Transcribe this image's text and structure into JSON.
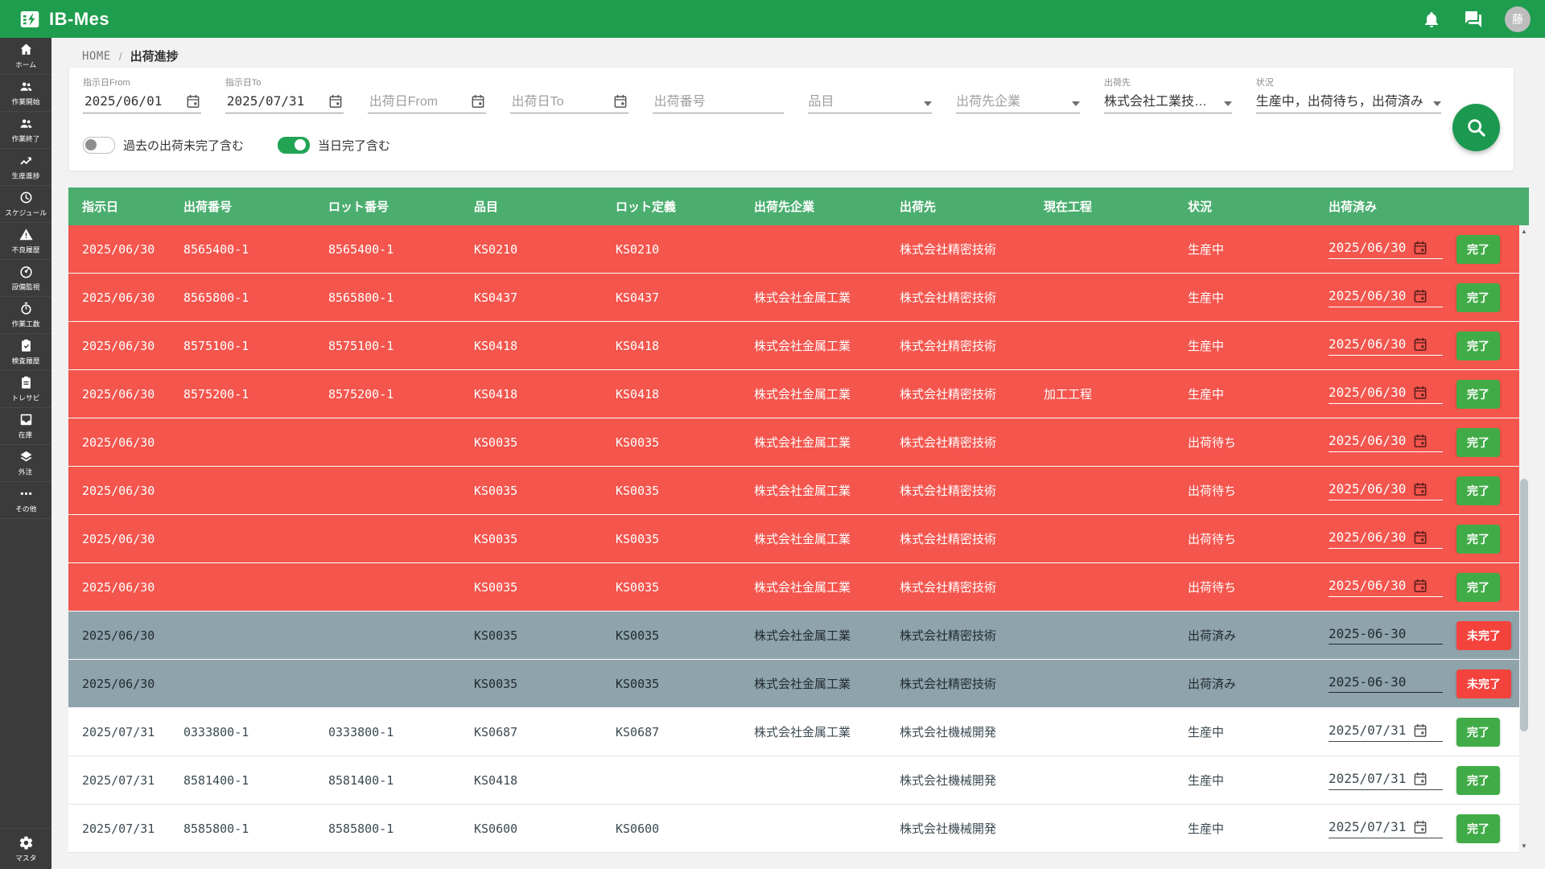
{
  "app": {
    "title": "IB-Mes",
    "avatar_text": "藤"
  },
  "breadcrumb": {
    "home": "HOME",
    "separator": "/",
    "current": "出荷進捗"
  },
  "filters": [
    {
      "type": "date",
      "label": "指示日From",
      "value": "2025/06/01",
      "placeholder": ""
    },
    {
      "type": "date",
      "label": "指示日To",
      "value": "2025/07/31",
      "placeholder": ""
    },
    {
      "type": "date",
      "label": "",
      "value": "",
      "placeholder": "出荷日From"
    },
    {
      "type": "date",
      "label": "",
      "value": "",
      "placeholder": "出荷日To"
    },
    {
      "type": "text",
      "label": "",
      "value": "",
      "placeholder": "出荷番号"
    },
    {
      "type": "select",
      "label": "",
      "value": "",
      "placeholder": "品目"
    },
    {
      "type": "select",
      "label": "",
      "value": "",
      "placeholder": "出荷先企業"
    },
    {
      "type": "select",
      "label": "出荷先",
      "value": "株式会社工業技…",
      "placeholder": ""
    },
    {
      "type": "select",
      "label": "状況",
      "value": "生産中，出荷待ち，出荷済み",
      "placeholder": ""
    }
  ],
  "toggles": [
    {
      "label": "過去の出荷未完了含む",
      "on": false
    },
    {
      "label": "当日完了含む",
      "on": true
    }
  ],
  "sidebar": {
    "items": [
      {
        "icon": "home-icon",
        "label": "ホーム"
      },
      {
        "icon": "people-icon",
        "label": "作業開始"
      },
      {
        "icon": "people-icon",
        "label": "作業終了"
      },
      {
        "icon": "trend-icon",
        "label": "生産進捗"
      },
      {
        "icon": "clock-icon",
        "label": "スケジュール"
      },
      {
        "icon": "warning-icon",
        "label": "不良履歴"
      },
      {
        "icon": "gauge-icon",
        "label": "設備監視"
      },
      {
        "icon": "stopwatch-icon",
        "label": "作業工数"
      },
      {
        "icon": "clipboard-check-icon",
        "label": "検査履歴"
      },
      {
        "icon": "clipboard-icon",
        "label": "トレサビ"
      },
      {
        "icon": "inbox-icon",
        "label": "在庫"
      },
      {
        "icon": "layers-icon",
        "label": "外注"
      },
      {
        "icon": "ellipsis-icon",
        "label": "その他"
      }
    ],
    "bottom": {
      "icon": "gear-icon",
      "label": "マスタ"
    }
  },
  "table": {
    "columns": [
      "指示日",
      "出荷番号",
      "ロット番号",
      "品目",
      "ロット定義",
      "出荷先企業",
      "出荷先",
      "現在工程",
      "状況",
      "出荷済み"
    ],
    "rows": [
      {
        "style": "red",
        "cells": [
          "2025/06/30",
          "8565400-1",
          "8565400-1",
          "KS0210",
          "KS0210",
          "",
          "株式会社精密技術",
          "",
          "生産中"
        ],
        "date": "2025/06/30",
        "calendar": true,
        "action": "完了",
        "action_style": "green"
      },
      {
        "style": "red",
        "cells": [
          "2025/06/30",
          "8565800-1",
          "8565800-1",
          "KS0437",
          "KS0437",
          "株式会社金属工業",
          "株式会社精密技術",
          "",
          "生産中"
        ],
        "date": "2025/06/30",
        "calendar": true,
        "action": "完了",
        "action_style": "green"
      },
      {
        "style": "red",
        "cells": [
          "2025/06/30",
          "8575100-1",
          "8575100-1",
          "KS0418",
          "KS0418",
          "株式会社金属工業",
          "株式会社精密技術",
          "",
          "生産中"
        ],
        "date": "2025/06/30",
        "calendar": true,
        "action": "完了",
        "action_style": "green"
      },
      {
        "style": "red",
        "cells": [
          "2025/06/30",
          "8575200-1",
          "8575200-1",
          "KS0418",
          "KS0418",
          "株式会社金属工業",
          "株式会社精密技術",
          "加工工程",
          "生産中"
        ],
        "date": "2025/06/30",
        "calendar": true,
        "action": "完了",
        "action_style": "green"
      },
      {
        "style": "red",
        "cells": [
          "2025/06/30",
          "",
          "",
          "KS0035",
          "KS0035",
          "株式会社金属工業",
          "株式会社精密技術",
          "",
          "出荷待ち"
        ],
        "date": "2025/06/30",
        "calendar": true,
        "action": "完了",
        "action_style": "green"
      },
      {
        "style": "red",
        "cells": [
          "2025/06/30",
          "",
          "",
          "KS0035",
          "KS0035",
          "株式会社金属工業",
          "株式会社精密技術",
          "",
          "出荷待ち"
        ],
        "date": "2025/06/30",
        "calendar": true,
        "action": "完了",
        "action_style": "green"
      },
      {
        "style": "red",
        "cells": [
          "2025/06/30",
          "",
          "",
          "KS0035",
          "KS0035",
          "株式会社金属工業",
          "株式会社精密技術",
          "",
          "出荷待ち"
        ],
        "date": "2025/06/30",
        "calendar": true,
        "action": "完了",
        "action_style": "green"
      },
      {
        "style": "red",
        "cells": [
          "2025/06/30",
          "",
          "",
          "KS0035",
          "KS0035",
          "株式会社金属工業",
          "株式会社精密技術",
          "",
          "出荷待ち"
        ],
        "date": "2025/06/30",
        "calendar": true,
        "action": "完了",
        "action_style": "green"
      },
      {
        "style": "gray",
        "cells": [
          "2025/06/30",
          "",
          "",
          "KS0035",
          "KS0035",
          "株式会社金属工業",
          "株式会社精密技術",
          "",
          "出荷済み"
        ],
        "date": "2025-06-30",
        "calendar": false,
        "action": "未完了",
        "action_style": "red"
      },
      {
        "style": "gray",
        "cells": [
          "2025/06/30",
          "",
          "",
          "KS0035",
          "KS0035",
          "株式会社金属工業",
          "株式会社精密技術",
          "",
          "出荷済み"
        ],
        "date": "2025-06-30",
        "calendar": false,
        "action": "未完了",
        "action_style": "red"
      },
      {
        "style": "white",
        "cells": [
          "2025/07/31",
          "0333800-1",
          "0333800-1",
          "KS0687",
          "KS0687",
          "株式会社金属工業",
          "株式会社機械開発",
          "",
          "生産中"
        ],
        "date": "2025/07/31",
        "calendar": true,
        "action": "完了",
        "action_style": "green"
      },
      {
        "style": "white",
        "cells": [
          "2025/07/31",
          "8581400-1",
          "8581400-1",
          "KS0418",
          "",
          "",
          "株式会社機械開発",
          "",
          "生産中"
        ],
        "date": "2025/07/31",
        "calendar": true,
        "action": "完了",
        "action_style": "green"
      },
      {
        "style": "white",
        "cells": [
          "2025/07/31",
          "8585800-1",
          "8585800-1",
          "KS0600",
          "KS0600",
          "",
          "株式会社機械開発",
          "",
          "生産中"
        ],
        "date": "2025/07/31",
        "calendar": true,
        "action": "完了",
        "action_style": "green"
      }
    ]
  },
  "colors": {
    "appbar_green": "#1F9D4E",
    "table_header_green": "#4BAE6F",
    "row_red": "#F4554D",
    "row_gray": "#8FA3AB",
    "action_green": "#41AC47",
    "action_red": "#F4433C",
    "sidebar_bg": "#3B3B3B"
  }
}
